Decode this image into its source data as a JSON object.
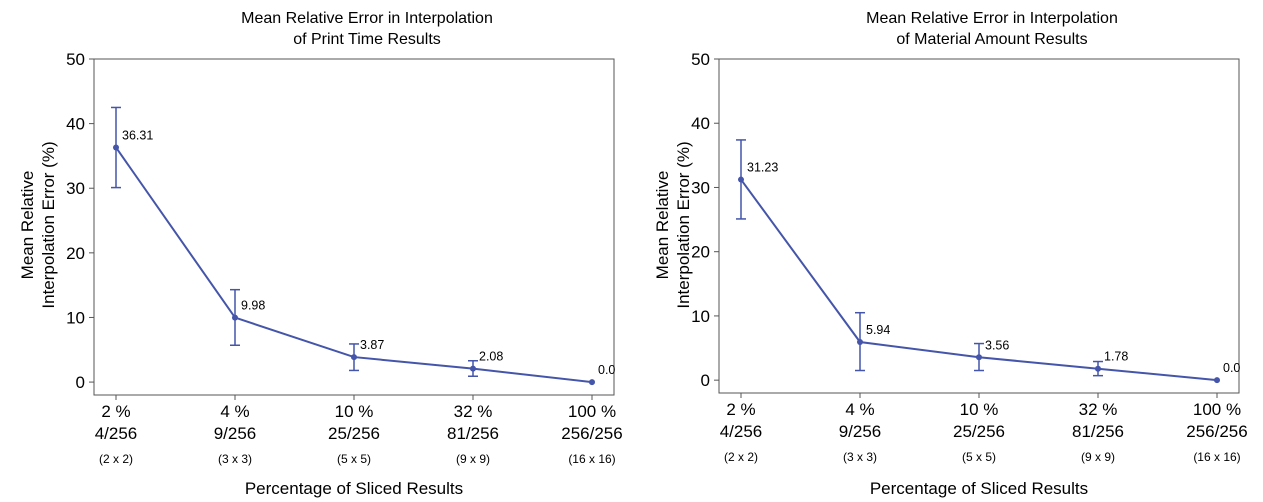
{
  "chart_data": [
    {
      "type": "line",
      "title": "Mean Relative Error in Interpolation of Print Time Results",
      "title_lines": [
        "Mean Relative Error in Interpolation",
        "of Print Time Results"
      ],
      "xlabel": "Percentage of Sliced Results",
      "ylabel": "Mean Relative Interpolation Error (%)",
      "ylabel_lines": [
        "Mean Relative",
        "Interpolation Error (%)"
      ],
      "categories": [
        [
          "2 %",
          "4/256",
          "(2 x 2)"
        ],
        [
          "4 %",
          "9/256",
          "(3 x 3)"
        ],
        [
          "10 %",
          "25/256",
          "(5 x 5)"
        ],
        [
          "32 %",
          "81/256",
          "(9 x 9)"
        ],
        [
          "100 %",
          "256/256",
          "(16 x 16)"
        ]
      ],
      "values": [
        36.31,
        9.98,
        3.87,
        2.08,
        0.0
      ],
      "data_labels": [
        "36.31",
        "9.98",
        "3.87",
        "2.08",
        "0.0"
      ],
      "error_low": [
        30.1,
        5.7,
        1.8,
        0.9,
        0.0
      ],
      "error_high": [
        42.5,
        14.3,
        5.9,
        3.3,
        0.0
      ],
      "yticks": [
        0,
        10,
        20,
        30,
        40,
        50
      ],
      "ylim": [
        -2,
        50
      ],
      "color": "#4455aa",
      "grid": false
    },
    {
      "type": "line",
      "title": "Mean Relative Error in Interpolation of Material Amount Results",
      "title_lines": [
        "Mean Relative Error in Interpolation",
        "of Material Amount Results"
      ],
      "xlabel": "Percentage of Sliced Results",
      "ylabel": "Mean Relative Interpolation Error (%)",
      "ylabel_lines": [
        "Mean Relative",
        "Interpolation Error (%)"
      ],
      "categories": [
        [
          "2 %",
          "4/256",
          "(2 x 2)"
        ],
        [
          "4 %",
          "9/256",
          "(3 x 3)"
        ],
        [
          "10 %",
          "25/256",
          "(5 x 5)"
        ],
        [
          "32 %",
          "81/256",
          "(9 x 9)"
        ],
        [
          "100 %",
          "256/256",
          "(16 x 16)"
        ]
      ],
      "values": [
        31.23,
        5.94,
        3.56,
        1.78,
        0.0
      ],
      "data_labels": [
        "31.23",
        "5.94",
        "3.56",
        "1.78",
        "0.0"
      ],
      "error_low": [
        25.1,
        1.5,
        1.5,
        0.7,
        0.0
      ],
      "error_high": [
        37.4,
        10.5,
        5.7,
        2.9,
        0.0
      ],
      "yticks": [
        0,
        10,
        20,
        30,
        40,
        50
      ],
      "ylim": [
        -2,
        50
      ],
      "color": "#4455aa",
      "grid": false
    }
  ]
}
